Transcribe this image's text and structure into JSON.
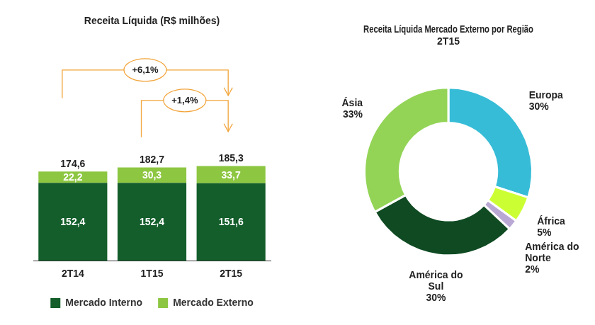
{
  "chart_data": [
    {
      "type": "bar",
      "title": "Receita Líquida (R$ milhões)",
      "categories": [
        "2T14",
        "1T15",
        "2T15"
      ],
      "series": [
        {
          "name": "Mercado Interno",
          "color": "#135e2b",
          "values": [
            152.4,
            152.4,
            151.6
          ],
          "value_labels": [
            "152,4",
            "152,4",
            "151,6"
          ]
        },
        {
          "name": "Mercado Externo",
          "color": "#8dc641",
          "values": [
            22.2,
            30.3,
            33.7
          ],
          "value_labels": [
            "22,2",
            "30,3",
            "33,7"
          ]
        }
      ],
      "totals": [
        174.6,
        182.7,
        185.3
      ],
      "total_labels": [
        "174,6",
        "182,7",
        "185,3"
      ],
      "annotations": [
        {
          "text": "+6,1%",
          "from": "2T14",
          "to": "2T15"
        },
        {
          "text": "+1,4%",
          "from": "1T15",
          "to": "2T15"
        }
      ],
      "ylim": [
        0,
        440
      ],
      "stacked": true,
      "data_labels": true,
      "tick_labels": "x",
      "grid": false,
      "legend": "bottom"
    },
    {
      "type": "doughnut",
      "title": "Receita Líquida Mercado Externo por Região",
      "subtitle": "2T15",
      "categories": [
        "Europa",
        "África",
        "América do Norte",
        "América do Sul",
        "Ásia"
      ],
      "values": [
        30,
        5,
        2,
        30,
        33
      ],
      "value_labels": [
        "30%",
        "5%",
        "2%",
        "30%",
        "33%"
      ],
      "colors": [
        "#36bcd7",
        "#ccff33",
        "#b9a8d4",
        "#0f4a22",
        "#93d457"
      ],
      "data_labels": true
    }
  ]
}
